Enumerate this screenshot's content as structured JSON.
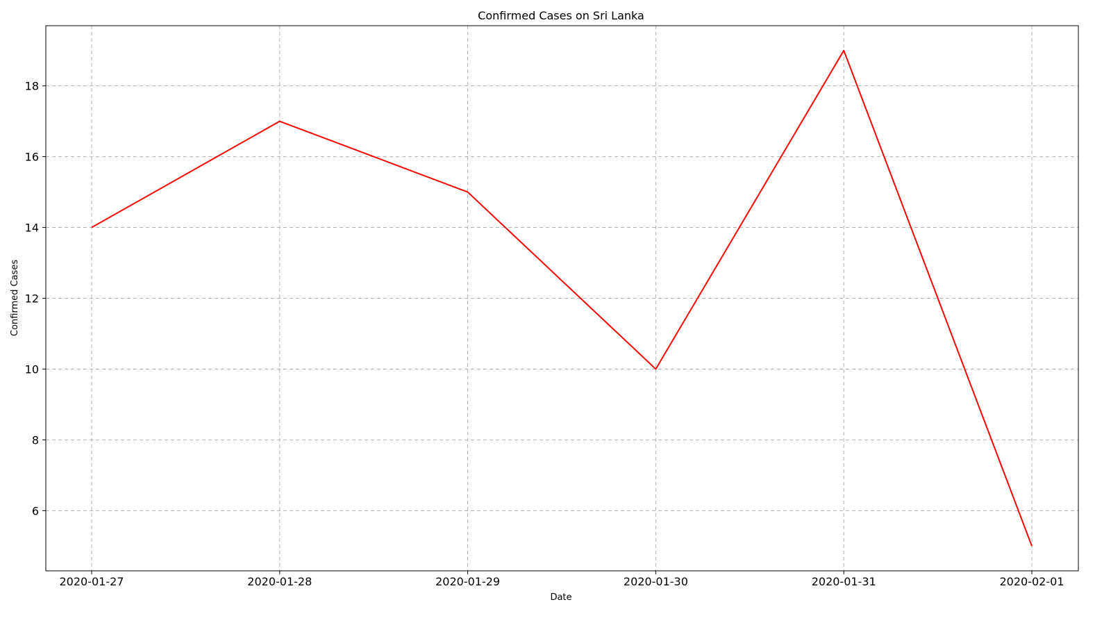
{
  "chart_data": {
    "type": "line",
    "title": "Confirmed Cases on Sri Lanka",
    "xlabel": "Date",
    "ylabel": "Confirmed Cases",
    "x": [
      "2020-01-27",
      "2020-01-28",
      "2020-01-29",
      "2020-01-30",
      "2020-01-31",
      "2020-02-01"
    ],
    "series": [
      {
        "values": [
          14,
          17,
          15,
          10,
          19,
          5
        ],
        "color": "#ff0000"
      }
    ],
    "yticks": [
      6,
      8,
      10,
      12,
      14,
      16,
      18
    ],
    "ylim": [
      4.3,
      19.7
    ],
    "grid": true
  }
}
